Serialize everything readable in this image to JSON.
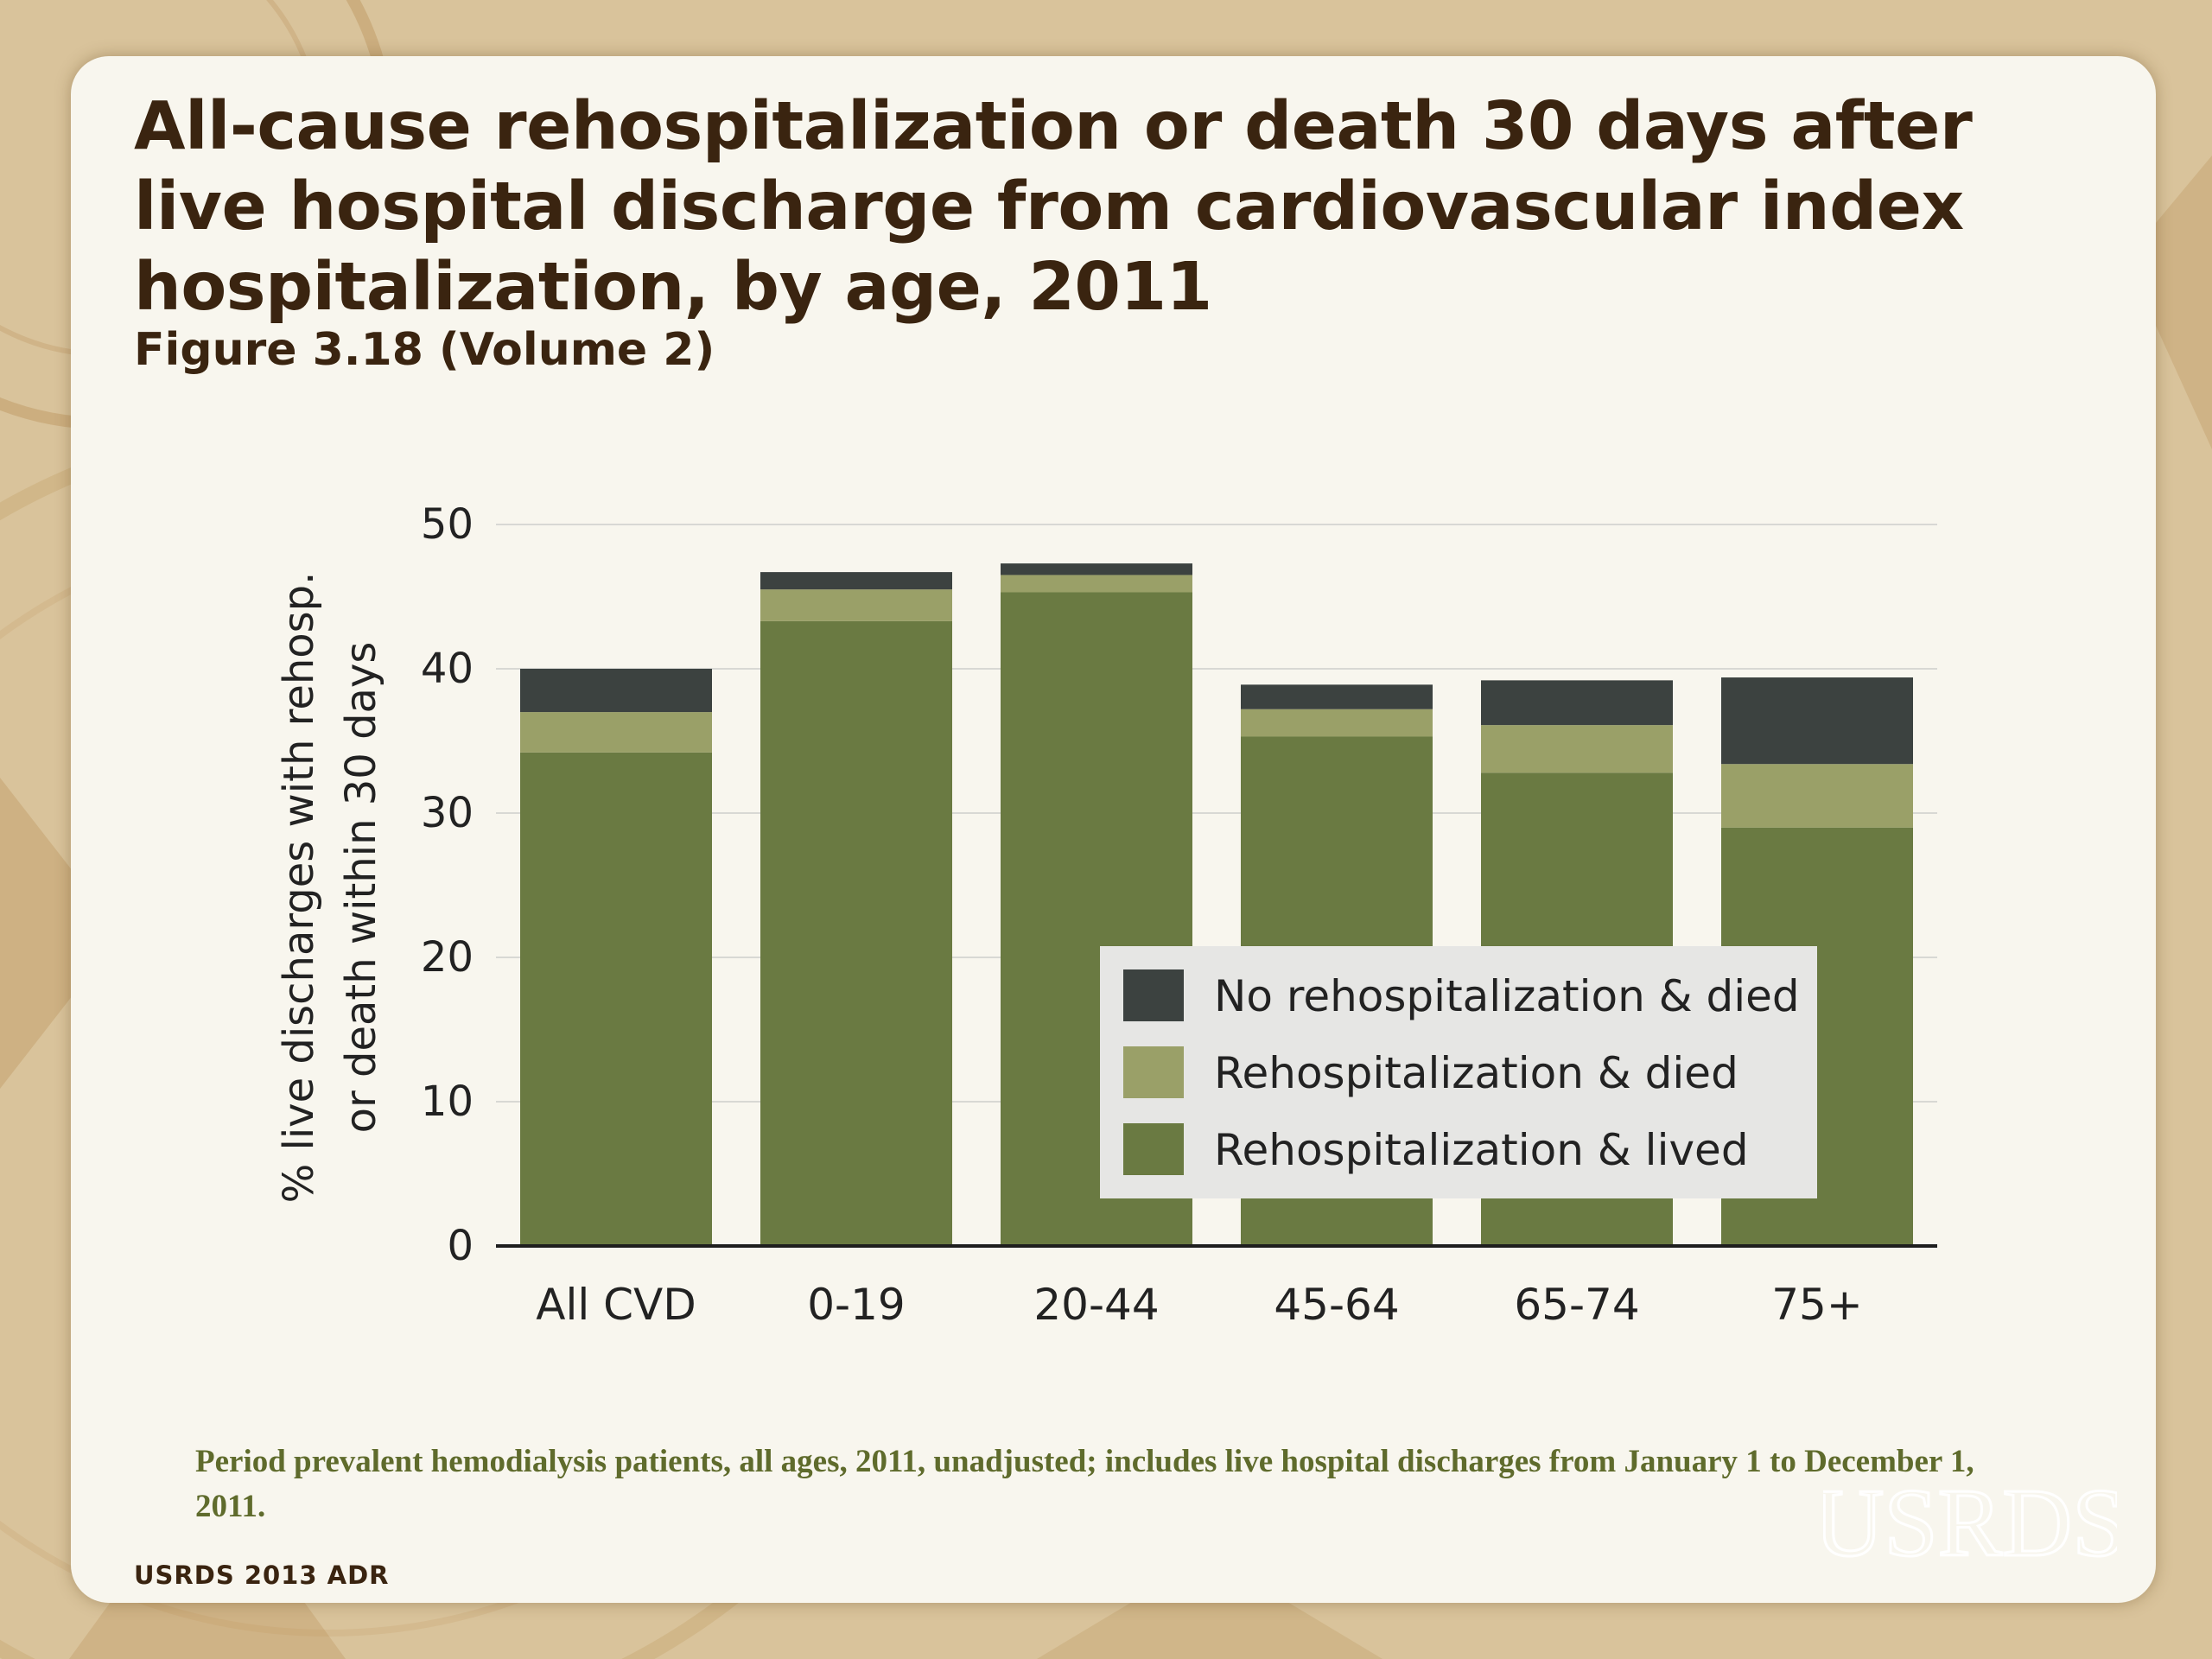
{
  "slide": {
    "title": "All-cause rehospitalization or death 30 days after live hospital discharge from cardiovascular index hospitalization, by age, 2011",
    "subtitle": "Figure 3.18 (Volume 2)",
    "note": "Period prevalent hemodialysis patients, all ages, 2011, unadjusted; includes live hospital discharges from January 1 to December 1, 2011.",
    "source": "USRDS 2013 ADR",
    "logo_text": "USRDS"
  },
  "colors": {
    "background": "#d8c29a",
    "card": "#f8f6ee",
    "title": "#3a2410",
    "note": "#5f6b2c",
    "grid": "#d8d8d4",
    "axis": "#1e1e1e"
  },
  "chart_data": {
    "type": "bar",
    "stacked": true,
    "categories": [
      "All CVD",
      "0-19",
      "20-44",
      "45-64",
      "65-74",
      "75+"
    ],
    "series": [
      {
        "name": "Rehospitalization & lived",
        "color": "#6a7a42",
        "values": [
          34.2,
          43.3,
          45.3,
          35.3,
          32.8,
          29.0
        ]
      },
      {
        "name": "Rehospitalization & died",
        "color": "#9aa068",
        "values": [
          2.8,
          2.2,
          1.2,
          1.9,
          3.3,
          4.4
        ]
      },
      {
        "name": "No rehospitalization & died",
        "color": "#3c4240",
        "values": [
          3.0,
          1.2,
          0.8,
          1.7,
          3.1,
          6.0
        ]
      }
    ],
    "legend_order": [
      "No rehospitalization & died",
      "Rehospitalization & died",
      "Rehospitalization & lived"
    ],
    "ylabel_lines": [
      "% live discharges with rehosp.",
      "or death within 30 days"
    ],
    "xlabel": "",
    "ylim": [
      0,
      50
    ],
    "yticks": [
      0,
      10,
      20,
      30,
      40,
      50
    ],
    "grid": true,
    "legend_position": "bottom-right"
  }
}
